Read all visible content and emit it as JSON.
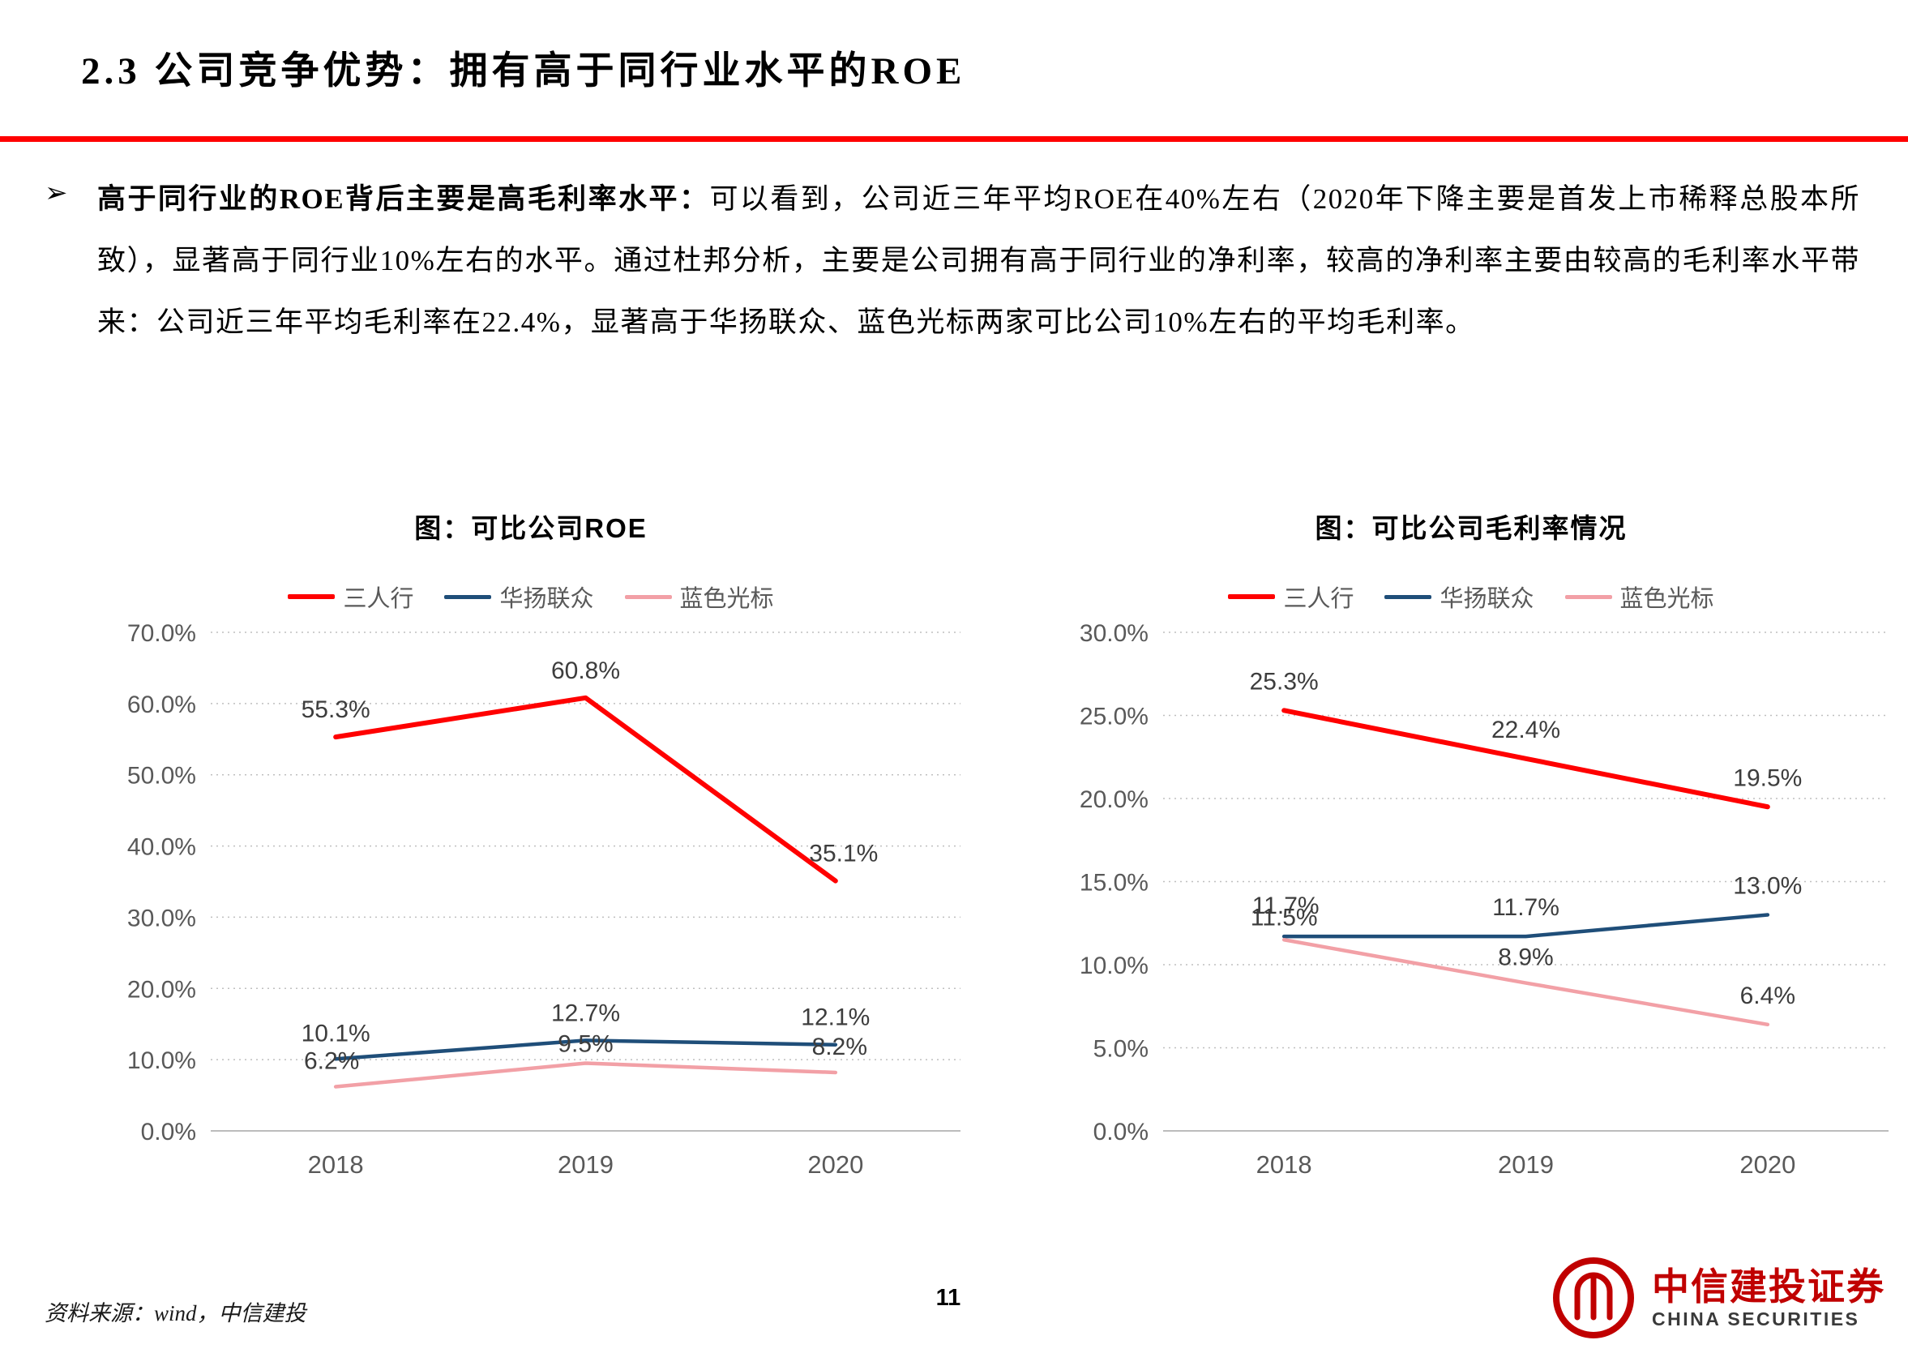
{
  "page": {
    "title": "2.3 公司竞争优势：拥有高于同行业水平的ROE",
    "bullet_icon": "➢",
    "bullet_lead": "高于同行业的ROE背后主要是高毛利率水平：",
    "bullet_body": "可以看到，公司近三年平均ROE在40%左右（2020年下降主要是首发上市稀释总股本所致），显著高于同行业10%左右的水平。通过杜邦分析，主要是公司拥有高于同行业的净利率，较高的净利率主要由较高的毛利率水平带来：公司近三年平均毛利率在22.4%，显著高于华扬联众、蓝色光标两家可比公司10%左右的平均毛利率。",
    "page_number": "11",
    "source_note": "资料来源：wind，中信建投",
    "logo": {
      "cn": "中信建投证券",
      "en": "CHINA SECURITIES"
    }
  },
  "colors": {
    "accent_red": "#FF0000",
    "logo_red": "#C00000",
    "grid": "#BFBFBF",
    "axis": "#A6A6A6",
    "tick_text": "#595959",
    "label_text": "#3d3d3d"
  },
  "chart_data": [
    {
      "type": "line",
      "title": "图：可比公司ROE",
      "categories": [
        "2018",
        "2019",
        "2020"
      ],
      "series": [
        {
          "name": "三人行",
          "color": "#FF0000",
          "values": [
            55.3,
            60.8,
            35.1
          ],
          "label_offsets": [
            [
              0,
              -24
            ],
            [
              0,
              -24
            ],
            [
              10,
              -24
            ]
          ]
        },
        {
          "name": "华扬联众",
          "color": "#1F4E79",
          "values": [
            10.1,
            12.7,
            12.1
          ],
          "label_offsets": [
            [
              0,
              -22
            ],
            [
              0,
              -24
            ],
            [
              0,
              -24
            ]
          ]
        },
        {
          "name": "蓝色光标",
          "color": "#F2A0A6",
          "values": [
            6.2,
            9.5,
            8.2
          ],
          "label_offsets": [
            [
              -5,
              -22
            ],
            [
              0,
              -14
            ],
            [
              5,
              -22
            ]
          ]
        }
      ],
      "ylim": [
        0,
        70
      ],
      "ytick_step": 10,
      "grid": "dotted-horizontal",
      "legend_position": "top"
    },
    {
      "type": "line",
      "title": "图：可比公司毛利率情况",
      "categories": [
        "2018",
        "2019",
        "2020"
      ],
      "series": [
        {
          "name": "三人行",
          "color": "#FF0000",
          "values": [
            25.3,
            22.4,
            19.5
          ],
          "label_offsets": [
            [
              0,
              -26
            ],
            [
              0,
              -26
            ],
            [
              0,
              -26
            ]
          ]
        },
        {
          "name": "华扬联众",
          "color": "#1F4E79",
          "values": [
            11.7,
            11.7,
            13.0
          ],
          "label_offsets": [
            [
              2,
              -28
            ],
            [
              0,
              -26
            ],
            [
              0,
              -26
            ]
          ]
        },
        {
          "name": "蓝色光标",
          "color": "#F2A0A6",
          "values": [
            11.5,
            8.9,
            6.4
          ],
          "label_offsets": [
            [
              0,
              -18
            ],
            [
              0,
              -22
            ],
            [
              0,
              -26
            ]
          ]
        }
      ],
      "ylim": [
        0,
        30
      ],
      "ytick_step": 5,
      "grid": "dotted-horizontal",
      "legend_position": "top"
    }
  ]
}
